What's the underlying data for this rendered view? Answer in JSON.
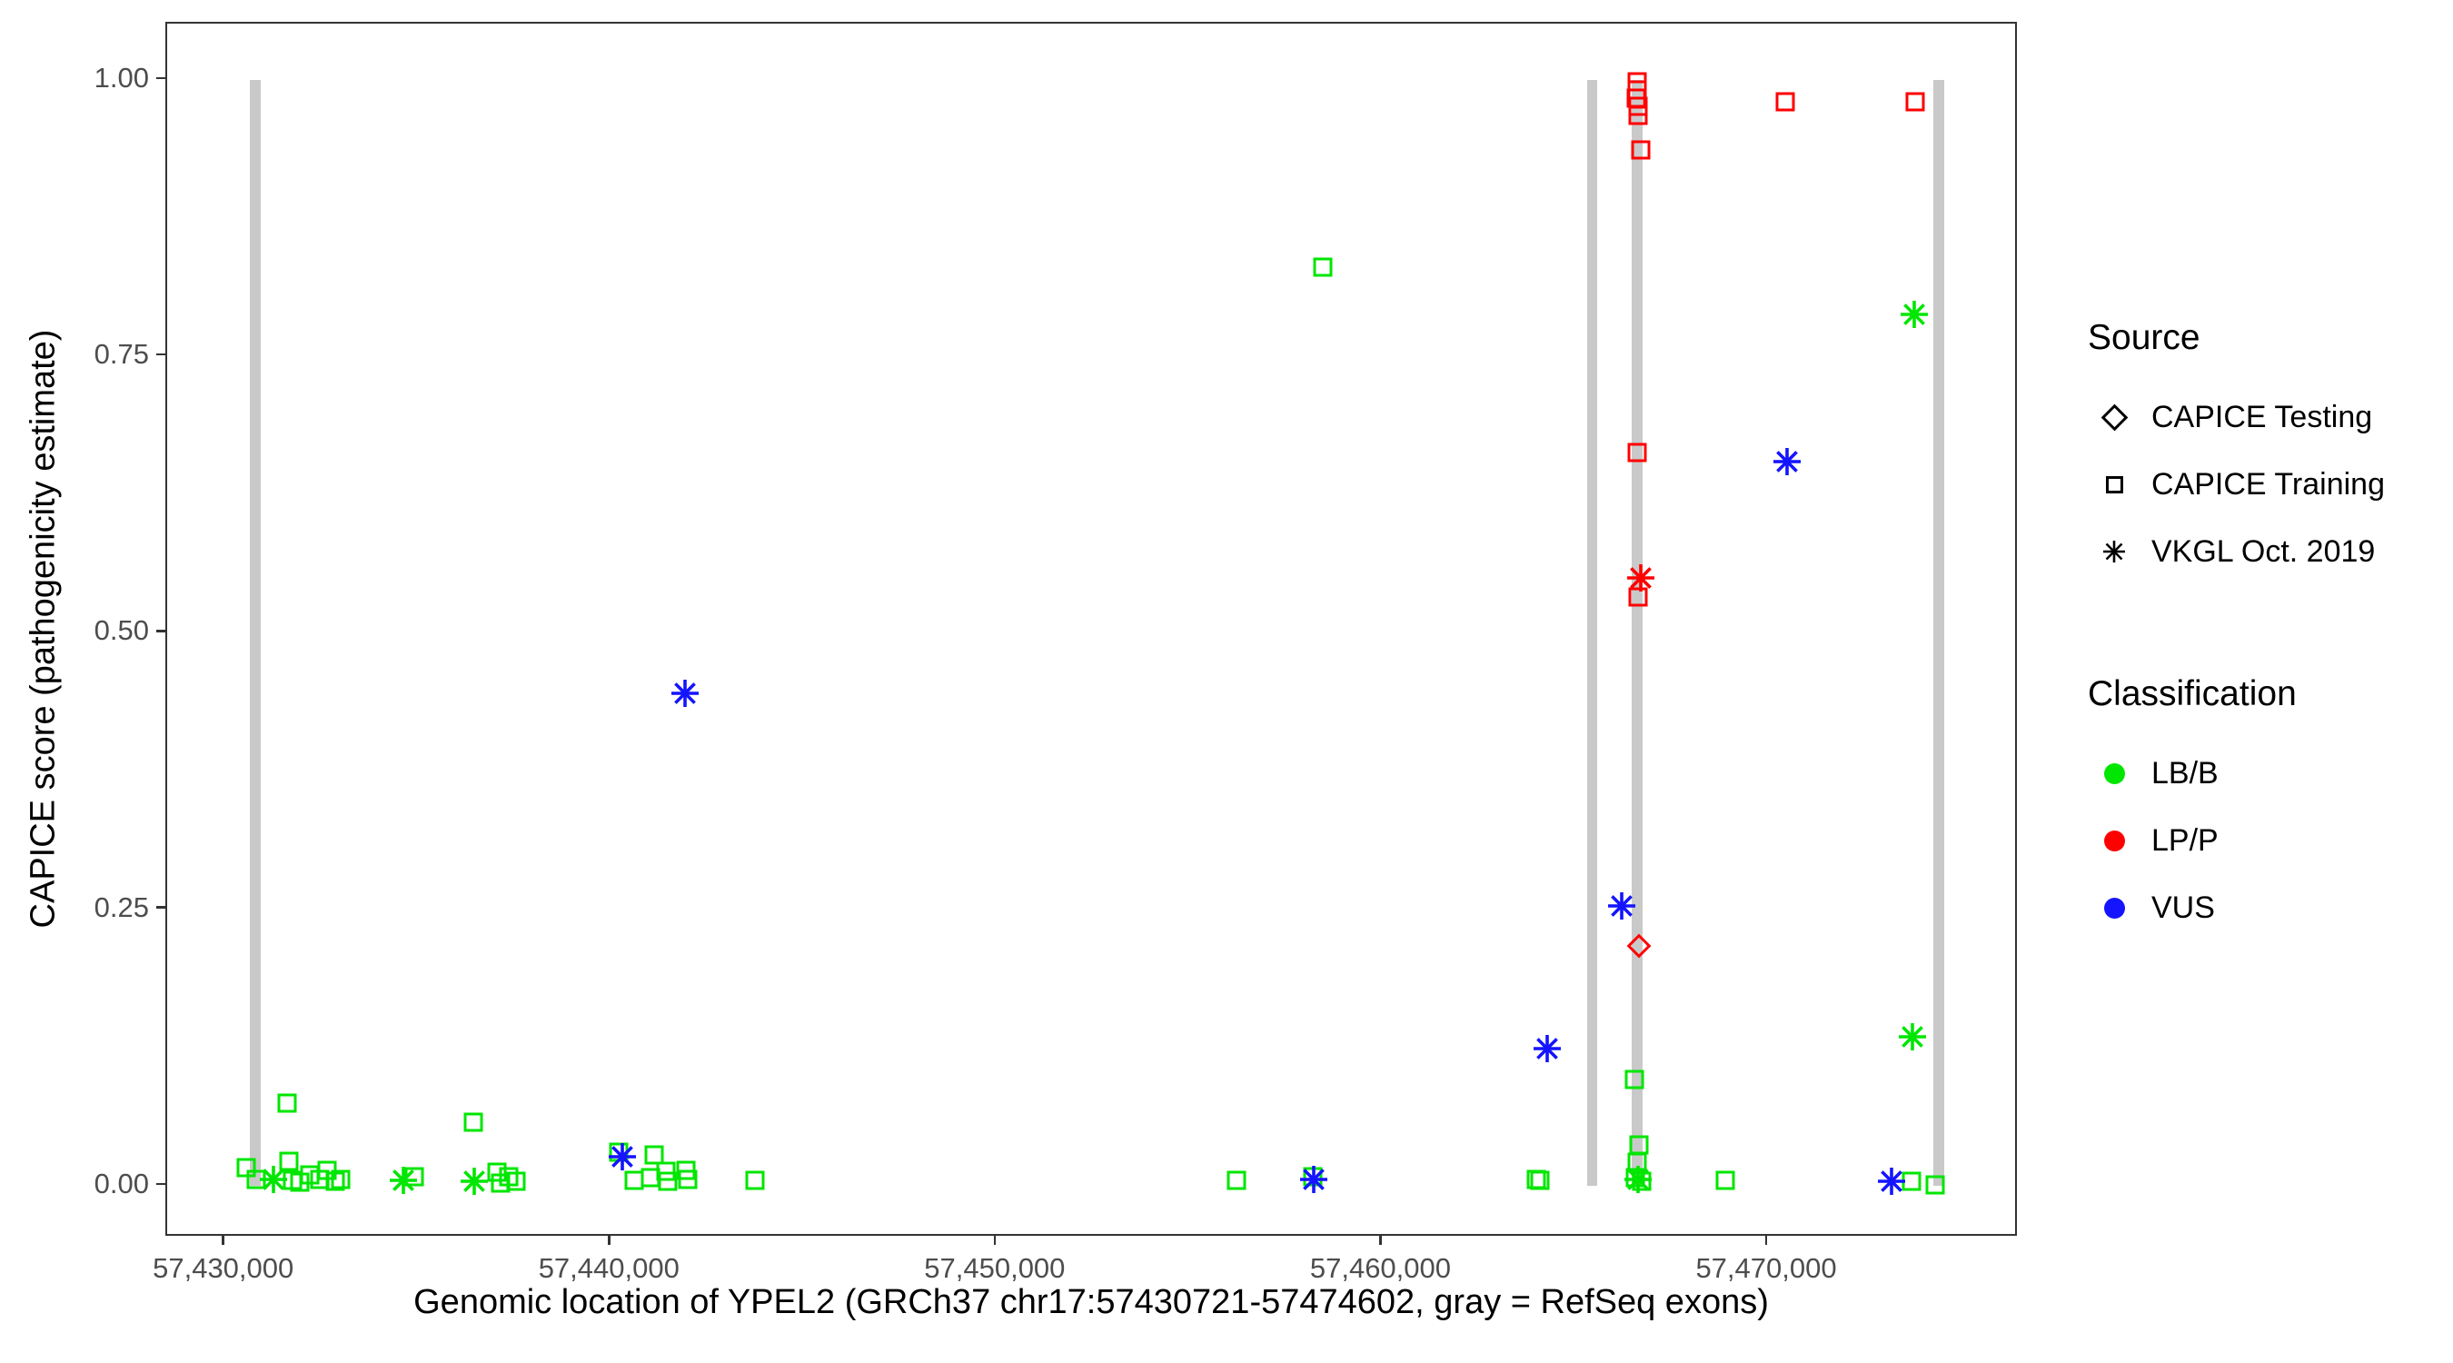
{
  "figure": {
    "x_axis_title": "Genomic location of YPEL2 (GRCh37 chr17:57430721-57474602, gray = RefSeq exons)",
    "y_axis_title": "CAPICE score (pathogenicity estimate)"
  },
  "legend": {
    "source": {
      "title": "Source",
      "items": [
        {
          "label": "CAPICE Testing",
          "marker": "diamond"
        },
        {
          "label": "CAPICE Training",
          "marker": "square"
        },
        {
          "label": "VKGL Oct. 2019",
          "marker": "asterisk"
        }
      ]
    },
    "classification": {
      "title": "Classification",
      "items": [
        {
          "label": "LB/B",
          "color": "#00e600"
        },
        {
          "label": "LP/P",
          "color": "#ff0000"
        },
        {
          "label": "VUS",
          "color": "#1414ff"
        }
      ]
    }
  },
  "chart_data": {
    "type": "scatter",
    "title": "",
    "xlabel": "Genomic location of YPEL2 (GRCh37 chr17:57430721-57474602, gray = RefSeq exons)",
    "ylabel": "CAPICE score (pathogenicity estimate)",
    "x_range": [
      57428500,
      57476500
    ],
    "y_range": [
      -0.047,
      1.051
    ],
    "grid": false,
    "legend_position": "right",
    "x_ticks": [
      {
        "value": 57430000,
        "label": "57,430,000"
      },
      {
        "value": 57440000,
        "label": "57,440,000"
      },
      {
        "value": 57450000,
        "label": "57,450,000"
      },
      {
        "value": 57460000,
        "label": "57,460,000"
      },
      {
        "value": 57470000,
        "label": "57,470,000"
      }
    ],
    "y_ticks": [
      {
        "value": 0.0,
        "label": "0.00"
      },
      {
        "value": 0.25,
        "label": "0.25"
      },
      {
        "value": 0.5,
        "label": "0.50"
      },
      {
        "value": 0.75,
        "label": "0.75"
      },
      {
        "value": 1.0,
        "label": "1.00"
      }
    ],
    "exons": {
      "note": "gray = RefSeq exons",
      "color": "#c9c9c9",
      "width_bp": 270,
      "y_span": [
        0,
        1
      ],
      "positions": [
        57430790,
        57465440,
        57466610,
        57474430
      ]
    },
    "marker_shapes": {
      "CAPICE Testing": "diamond",
      "CAPICE Training": "square",
      "VKGL Oct. 2019": "asterisk"
    },
    "class_colors": {
      "LB/B": "#00e600",
      "LP/P": "#ff0000",
      "VUS": "#1414ff"
    },
    "points": [
      {
        "p": 57430540,
        "s": 0.016,
        "src": "CAPICE Training",
        "cls": "LB/B"
      },
      {
        "p": 57430800,
        "s": 0.006,
        "src": "CAPICE Training",
        "cls": "LB/B"
      },
      {
        "p": 57431600,
        "s": 0.075,
        "src": "CAPICE Training",
        "cls": "LB/B"
      },
      {
        "p": 57431650,
        "s": 0.022,
        "src": "CAPICE Training",
        "cls": "LB/B"
      },
      {
        "p": 57431750,
        "s": 0.005,
        "src": "CAPICE Training",
        "cls": "LB/B"
      },
      {
        "p": 57431950,
        "s": 0.003,
        "src": "CAPICE Training",
        "cls": "LB/B"
      },
      {
        "p": 57432200,
        "s": 0.01,
        "src": "CAPICE Training",
        "cls": "LB/B"
      },
      {
        "p": 57432450,
        "s": 0.006,
        "src": "CAPICE Training",
        "cls": "LB/B"
      },
      {
        "p": 57432650,
        "s": 0.014,
        "src": "CAPICE Training",
        "cls": "LB/B"
      },
      {
        "p": 57432850,
        "s": 0.004,
        "src": "CAPICE Training",
        "cls": "LB/B"
      },
      {
        "p": 57433000,
        "s": 0.006,
        "src": "CAPICE Training",
        "cls": "LB/B"
      },
      {
        "p": 57434900,
        "s": 0.008,
        "src": "CAPICE Training",
        "cls": "LB/B"
      },
      {
        "p": 57436430,
        "s": 0.057,
        "src": "CAPICE Training",
        "cls": "LB/B"
      },
      {
        "p": 57437050,
        "s": 0.012,
        "src": "CAPICE Training",
        "cls": "LB/B"
      },
      {
        "p": 57437150,
        "s": 0.002,
        "src": "CAPICE Training",
        "cls": "LB/B"
      },
      {
        "p": 57437350,
        "s": 0.008,
        "src": "CAPICE Training",
        "cls": "LB/B"
      },
      {
        "p": 57437550,
        "s": 0.004,
        "src": "CAPICE Training",
        "cls": "LB/B"
      },
      {
        "p": 57440210,
        "s": 0.03,
        "src": "CAPICE Training",
        "cls": "LB/B"
      },
      {
        "p": 57440610,
        "s": 0.005,
        "src": "CAPICE Training",
        "cls": "LB/B"
      },
      {
        "p": 57441040,
        "s": 0.007,
        "src": "CAPICE Training",
        "cls": "LB/B"
      },
      {
        "p": 57441130,
        "s": 0.028,
        "src": "CAPICE Training",
        "cls": "LB/B"
      },
      {
        "p": 57441440,
        "s": 0.013,
        "src": "CAPICE Training",
        "cls": "LB/B"
      },
      {
        "p": 57441480,
        "s": 0.004,
        "src": "CAPICE Training",
        "cls": "LB/B"
      },
      {
        "p": 57441950,
        "s": 0.014,
        "src": "CAPICE Training",
        "cls": "LB/B"
      },
      {
        "p": 57441990,
        "s": 0.006,
        "src": "CAPICE Training",
        "cls": "LB/B"
      },
      {
        "p": 57443750,
        "s": 0.005,
        "src": "CAPICE Training",
        "cls": "LB/B"
      },
      {
        "p": 57456220,
        "s": 0.005,
        "src": "CAPICE Training",
        "cls": "LB/B"
      },
      {
        "p": 57458200,
        "s": 0.008,
        "src": "CAPICE Training",
        "cls": "LB/B"
      },
      {
        "p": 57458450,
        "s": 0.831,
        "src": "CAPICE Training",
        "cls": "LB/B"
      },
      {
        "p": 57463990,
        "s": 0.006,
        "src": "CAPICE Training",
        "cls": "LB/B"
      },
      {
        "p": 57464090,
        "s": 0.005,
        "src": "CAPICE Training",
        "cls": "LB/B"
      },
      {
        "p": 57466540,
        "s": 0.096,
        "src": "CAPICE Training",
        "cls": "LB/B"
      },
      {
        "p": 57466650,
        "s": 0.037,
        "src": "CAPICE Training",
        "cls": "LB/B"
      },
      {
        "p": 57466600,
        "s": 0.021,
        "src": "CAPICE Training",
        "cls": "LB/B"
      },
      {
        "p": 57466570,
        "s": 0.007,
        "src": "CAPICE Training",
        "cls": "LB/B"
      },
      {
        "p": 57466730,
        "s": 0.004,
        "src": "CAPICE Training",
        "cls": "LB/B"
      },
      {
        "p": 57468900,
        "s": 0.005,
        "src": "CAPICE Training",
        "cls": "LB/B"
      },
      {
        "p": 57473710,
        "s": 0.004,
        "src": "CAPICE Training",
        "cls": "LB/B"
      },
      {
        "p": 57474330,
        "s": 0.001,
        "src": "CAPICE Training",
        "cls": "LB/B"
      },
      {
        "p": 57466600,
        "s": 0.998,
        "src": "CAPICE Training",
        "cls": "LP/P"
      },
      {
        "p": 57466615,
        "s": 0.991,
        "src": "CAPICE Training",
        "cls": "LP/P"
      },
      {
        "p": 57466590,
        "s": 0.984,
        "src": "CAPICE Training",
        "cls": "LP/P"
      },
      {
        "p": 57466625,
        "s": 0.976,
        "src": "CAPICE Training",
        "cls": "LP/P"
      },
      {
        "p": 57466635,
        "s": 0.968,
        "src": "CAPICE Training",
        "cls": "LP/P"
      },
      {
        "p": 57466710,
        "s": 0.937,
        "src": "CAPICE Training",
        "cls": "LP/P"
      },
      {
        "p": 57466600,
        "s": 0.663,
        "src": "CAPICE Training",
        "cls": "LP/P"
      },
      {
        "p": 57466620,
        "s": 0.532,
        "src": "CAPICE Training",
        "cls": "LP/P"
      },
      {
        "p": 57470450,
        "s": 0.98,
        "src": "CAPICE Training",
        "cls": "LP/P"
      },
      {
        "p": 57473810,
        "s": 0.98,
        "src": "CAPICE Training",
        "cls": "LP/P"
      },
      {
        "p": 57466660,
        "s": 0.217,
        "src": "CAPICE Testing",
        "cls": "LP/P"
      },
      {
        "p": 57431250,
        "s": 0.006,
        "src": "VKGL Oct. 2019",
        "cls": "LB/B"
      },
      {
        "p": 57434620,
        "s": 0.005,
        "src": "VKGL Oct. 2019",
        "cls": "LB/B"
      },
      {
        "p": 57436450,
        "s": 0.004,
        "src": "VKGL Oct. 2019",
        "cls": "LB/B"
      },
      {
        "p": 57466640,
        "s": 0.006,
        "src": "VKGL Oct. 2019",
        "cls": "LB/B"
      },
      {
        "p": 57473790,
        "s": 0.788,
        "src": "VKGL Oct. 2019",
        "cls": "LB/B"
      },
      {
        "p": 57473740,
        "s": 0.135,
        "src": "VKGL Oct. 2019",
        "cls": "LB/B"
      },
      {
        "p": 57466700,
        "s": 0.55,
        "src": "VKGL Oct. 2019",
        "cls": "LP/P"
      },
      {
        "p": 57440310,
        "s": 0.026,
        "src": "VKGL Oct. 2019",
        "cls": "VUS"
      },
      {
        "p": 57441930,
        "s": 0.445,
        "src": "VKGL Oct. 2019",
        "cls": "VUS"
      },
      {
        "p": 57458230,
        "s": 0.006,
        "src": "VKGL Oct. 2019",
        "cls": "VUS"
      },
      {
        "p": 57464280,
        "s": 0.124,
        "src": "VKGL Oct. 2019",
        "cls": "VUS"
      },
      {
        "p": 57466200,
        "s": 0.253,
        "src": "VKGL Oct. 2019",
        "cls": "VUS"
      },
      {
        "p": 57470500,
        "s": 0.655,
        "src": "VKGL Oct. 2019",
        "cls": "VUS"
      },
      {
        "p": 57473200,
        "s": 0.004,
        "src": "VKGL Oct. 2019",
        "cls": "VUS"
      }
    ]
  }
}
